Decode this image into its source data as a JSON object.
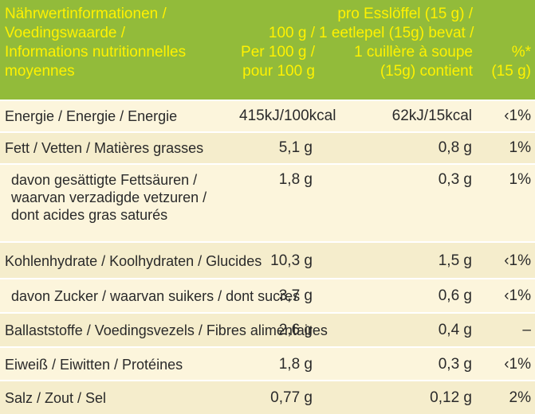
{
  "header": {
    "col1": [
      "Nährwertinformationen /",
      "Voedingswaarde  /",
      "Informations nutritionnelles",
      "moyennes"
    ],
    "col2": [
      "100 g /",
      "Per 100 g /",
      "pour 100 g"
    ],
    "col3": [
      "pro Esslöffel (15 g) /",
      "1 eetlepel (15g) bevat /",
      "1 cuillère à soupe",
      "(15g) contient"
    ],
    "col4": [
      "%*",
      "(15 g)"
    ]
  },
  "rows": [
    {
      "label": [
        "Energie / Energie / Energie"
      ],
      "per100": "415kJ/100kcal",
      "perSpoon": "62kJ/15kcal",
      "pct": "‹1%"
    },
    {
      "label": [
        "Fett / Vetten / Matières grasses"
      ],
      "per100": "5,1 g",
      "perSpoon": "0,8 g",
      "pct": "1%"
    },
    {
      "label": [
        "davon gesättigte Fettsäuren /",
        "waarvan verzadigde vetzuren /",
        "dont acides gras saturés"
      ],
      "per100": "1,8 g",
      "perSpoon": "0,3 g",
      "pct": "1%"
    },
    {
      "label": [
        "Kohlenhydrate / Koolhydraten / Glucides"
      ],
      "per100": "10,3 g",
      "perSpoon": "1,5 g",
      "pct": "‹1%"
    },
    {
      "label": [
        "davon Zucker / waarvan suikers / dont sucres"
      ],
      "per100": "3,7 g",
      "perSpoon": "0,6 g",
      "pct": "‹1%"
    },
    {
      "label": [
        "Ballaststoffe / Voedingsvezels / Fibres alimentaires"
      ],
      "per100": "2,6 g",
      "perSpoon": "0,4 g",
      "pct": "–"
    },
    {
      "label": [
        "Eiweiß / Eiwitten / Protéines"
      ],
      "per100": "1,8 g",
      "perSpoon": "0,3 g",
      "pct": "‹1%"
    },
    {
      "label": [
        "Salz / Zout / Sel"
      ],
      "per100": "0,77 g",
      "perSpoon": "0,12 g",
      "pct": "2%"
    }
  ]
}
